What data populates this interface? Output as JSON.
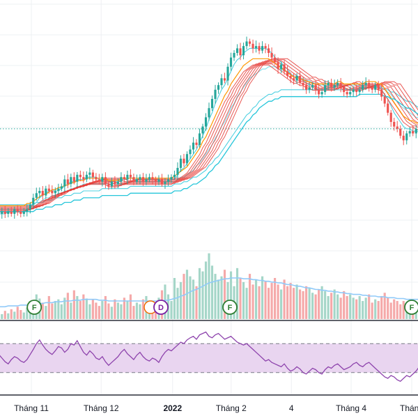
{
  "chart_data": {
    "type": "candlestick",
    "colors": {
      "up": "#26a69a",
      "down": "#ef5350",
      "volume_up": "#a5d6c8",
      "volume_down": "#f5a9a9",
      "volume_ma": "#90caf9",
      "rsi_line": "#8e44ad",
      "rsi_band": "#e9d5f0",
      "ribbon_short": "#4dd0e1",
      "ribbon_long": "#e53935",
      "ribbon_mid": "#ff9800",
      "ema_blue": "#3f51b5",
      "grid": "#eef0f3",
      "marker_f": "#2e7d32",
      "marker_d": "#7b1fa2",
      "marker_orange": "#ef6c00"
    },
    "x_axis": {
      "ticks": [
        {
          "label": "Tháng 11",
          "pos": 0.075
        },
        {
          "label": "Tháng 12",
          "pos": 0.242
        },
        {
          "label": "2022",
          "pos": 0.413
        },
        {
          "label": "Tháng 2",
          "pos": 0.553
        },
        {
          "label": "4",
          "pos": 0.697
        },
        {
          "label": "Tháng 4",
          "pos": 0.84
        },
        {
          "label": "Thán",
          "pos": 0.985
        }
      ]
    },
    "price": {
      "min": 0,
      "max": 100,
      "reference_line": 57,
      "close": [
        20,
        21,
        20,
        21,
        20,
        22,
        21,
        20,
        21,
        22,
        24,
        27,
        29,
        30,
        28,
        31,
        30,
        29,
        30,
        31,
        32,
        35,
        33,
        36,
        34,
        37,
        36,
        35,
        37,
        38,
        36,
        35,
        34,
        36,
        33,
        32,
        34,
        33,
        34,
        36,
        35,
        37,
        36,
        34,
        35,
        36,
        34,
        35,
        36,
        35,
        34,
        35,
        33,
        34,
        35,
        36,
        37,
        40,
        44,
        42,
        46,
        48,
        51,
        50,
        55,
        58,
        62,
        66,
        70,
        74,
        76,
        79,
        78,
        84,
        88,
        90,
        92,
        89,
        93,
        95,
        94,
        92,
        93,
        91,
        93,
        92,
        90,
        88,
        86,
        83,
        85,
        82,
        80,
        79,
        78,
        80,
        77,
        76,
        74,
        75,
        76,
        74,
        72,
        73,
        76,
        77,
        75,
        76,
        77,
        75,
        73,
        72,
        73,
        74,
        73,
        74,
        76,
        77,
        75,
        74,
        76,
        74,
        71,
        68,
        64,
        60,
        58,
        57,
        54,
        52,
        55,
        56,
        55,
        57,
        56
      ],
      "open": [
        20,
        20,
        21,
        20,
        21,
        20,
        22,
        21,
        20,
        21,
        22,
        24,
        27,
        29,
        30,
        28,
        31,
        30,
        29,
        30,
        31,
        32,
        35,
        33,
        36,
        34,
        37,
        36,
        35,
        37,
        38,
        36,
        35,
        34,
        36,
        33,
        32,
        34,
        33,
        34,
        36,
        35,
        37,
        36,
        34,
        35,
        36,
        34,
        35,
        36,
        35,
        34,
        35,
        33,
        34,
        35,
        36,
        37,
        40,
        44,
        42,
        46,
        48,
        51,
        50,
        55,
        58,
        62,
        66,
        70,
        74,
        76,
        79,
        78,
        84,
        88,
        90,
        92,
        89,
        93,
        95,
        94,
        92,
        93,
        91,
        93,
        92,
        90,
        88,
        86,
        83,
        85,
        82,
        80,
        79,
        78,
        80,
        77,
        76,
        74,
        75,
        76,
        74,
        72,
        73,
        76,
        77,
        75,
        76,
        77,
        75,
        73,
        72,
        73,
        74,
        73,
        74,
        76,
        77,
        75,
        74,
        76,
        74,
        71,
        68,
        64,
        60,
        58,
        57,
        54,
        52,
        55,
        56,
        55,
        57
      ],
      "ribbon": [
        [
          20,
          20,
          20,
          21,
          21,
          21,
          21,
          21,
          21,
          22,
          23,
          24,
          25,
          27,
          28,
          29,
          30,
          30,
          30,
          30,
          31,
          32,
          33,
          34,
          34,
          35,
          35,
          35,
          36,
          36,
          36,
          36,
          35,
          35,
          35,
          34,
          34,
          34,
          34,
          35,
          35,
          35,
          36,
          35,
          35,
          35,
          35,
          35,
          35,
          35,
          35,
          35,
          34,
          34,
          34,
          35,
          35,
          37,
          39,
          40,
          42,
          44,
          46,
          48,
          51,
          54,
          57,
          61,
          64,
          68,
          71,
          74,
          76,
          79,
          82,
          85,
          87,
          88,
          90,
          91,
          92,
          92,
          92,
          92,
          92,
          92,
          91,
          90,
          88,
          87,
          86,
          84,
          83,
          81,
          80,
          80,
          79,
          78,
          77,
          76,
          76,
          75,
          74,
          74,
          74,
          75,
          75,
          75,
          76,
          76,
          75,
          74,
          74,
          74,
          74,
          74,
          75,
          75,
          75,
          75,
          75,
          75,
          74,
          72,
          70,
          67,
          64,
          62,
          60,
          58,
          57,
          57,
          56,
          56,
          56
        ],
        [
          22,
          22,
          22,
          22,
          22,
          22,
          22,
          22,
          22,
          22,
          23,
          23,
          24,
          25,
          26,
          27,
          27,
          28,
          28,
          29,
          29,
          30,
          30,
          31,
          31,
          32,
          32,
          33,
          33,
          33,
          33,
          33,
          33,
          33,
          33,
          33,
          33,
          33,
          33,
          33,
          33,
          34,
          34,
          34,
          34,
          34,
          34,
          34,
          34,
          34,
          34,
          34,
          34,
          34,
          34,
          34,
          34,
          35,
          36,
          36,
          37,
          38,
          39,
          41,
          42,
          44,
          46,
          48,
          50,
          53,
          55,
          58,
          60,
          63,
          66,
          68,
          71,
          73,
          75,
          77,
          79,
          80,
          81,
          82,
          83,
          83,
          84,
          84,
          84,
          83,
          83,
          82,
          82,
          81,
          80,
          80,
          79,
          79,
          78,
          78,
          77,
          77,
          76,
          76,
          76,
          76,
          76,
          76,
          76,
          76,
          76,
          76,
          76,
          76,
          76,
          76,
          76,
          76,
          76,
          76,
          76,
          76,
          75,
          74,
          73,
          72,
          70,
          69,
          67,
          66,
          65,
          64,
          63,
          62,
          62
        ],
        [
          24,
          24,
          24,
          24,
          24,
          24,
          24,
          24,
          24,
          24,
          24,
          24,
          25,
          25,
          25,
          26,
          26,
          26,
          27,
          27,
          27,
          28,
          28,
          28,
          29,
          29,
          29,
          30,
          30,
          30,
          30,
          30,
          30,
          31,
          31,
          31,
          31,
          31,
          31,
          31,
          31,
          31,
          32,
          32,
          32,
          32,
          32,
          32,
          32,
          32,
          32,
          32,
          32,
          32,
          32,
          32,
          33,
          33,
          33,
          34,
          34,
          35,
          36,
          36,
          37,
          38,
          39,
          41,
          42,
          44,
          45,
          47,
          49,
          51,
          53,
          55,
          57,
          59,
          61,
          63,
          64,
          66,
          67,
          69,
          70,
          71,
          72,
          72,
          73,
          73,
          74,
          74,
          74,
          74,
          74,
          74,
          74,
          74,
          74,
          74,
          74,
          74,
          74,
          74,
          74,
          74,
          74,
          74,
          74,
          74,
          74,
          74,
          74,
          74,
          74,
          75,
          75,
          75,
          75,
          75,
          75,
          75,
          75,
          74,
          74,
          73,
          73,
          72,
          71,
          70,
          69,
          69,
          68,
          67,
          66
        ]
      ],
      "ribbon_mid": [
        22,
        22,
        22,
        22,
        22,
        22,
        22,
        22,
        22,
        23,
        23,
        24,
        25,
        26,
        27,
        27,
        28,
        29,
        29,
        30,
        30,
        31,
        31,
        32,
        32,
        33,
        33,
        33,
        34,
        34,
        34,
        34,
        34,
        34,
        34,
        33,
        33,
        33,
        33,
        34,
        34,
        34,
        34,
        34,
        34,
        34,
        34,
        34,
        34,
        34,
        34,
        34,
        34,
        34,
        34,
        34,
        35,
        36,
        37,
        38,
        39,
        41,
        43,
        45,
        47,
        50,
        52,
        55,
        58,
        61,
        64,
        67,
        70,
        72,
        75,
        77,
        79,
        81,
        83,
        84,
        85,
        86,
        86,
        86,
        86,
        86,
        86,
        85,
        84,
        83,
        82,
        81,
        80,
        79,
        78,
        78,
        77,
        77,
        76,
        76,
        75,
        75,
        75,
        75,
        75,
        75,
        75,
        75,
        76,
        76,
        75,
        75,
        75,
        75,
        75,
        75,
        75,
        76,
        76,
        76,
        76,
        75,
        75,
        73,
        71,
        69,
        67,
        65,
        63,
        61,
        60,
        59,
        59,
        58,
        58
      ]
    },
    "volume": {
      "max": 100,
      "values": [
        8,
        6,
        10,
        7,
        12,
        9,
        15,
        11,
        8,
        14,
        22,
        18,
        30,
        25,
        20,
        16,
        28,
        19,
        22,
        24,
        18,
        26,
        32,
        20,
        35,
        28,
        22,
        30,
        25,
        18,
        24,
        20,
        16,
        22,
        28,
        19,
        15,
        24,
        20,
        18,
        26,
        22,
        30,
        16,
        20,
        18,
        24,
        28,
        22,
        18,
        20,
        26,
        35,
        42,
        30,
        22,
        50,
        38,
        45,
        55,
        60,
        52,
        48,
        40,
        62,
        58,
        70,
        80,
        65,
        55,
        48,
        52,
        60,
        45,
        58,
        40,
        62,
        50,
        45,
        38,
        55,
        42,
        48,
        40,
        52,
        46,
        38,
        44,
        50,
        42,
        36,
        48,
        40,
        44,
        38,
        42,
        36,
        34,
        40,
        38,
        32,
        30,
        36,
        40,
        34,
        28,
        32,
        36,
        30,
        26,
        34,
        28,
        30,
        26,
        24,
        28,
        22,
        26,
        30,
        20,
        24,
        22,
        28,
        32,
        26,
        20,
        24,
        22,
        18,
        22,
        20,
        24,
        18,
        20,
        22
      ],
      "ma": [
        15,
        15,
        15,
        16,
        16,
        16,
        16,
        17,
        17,
        17,
        18,
        18,
        19,
        19,
        19,
        20,
        20,
        20,
        21,
        21,
        21,
        22,
        22,
        22,
        23,
        23,
        23,
        24,
        24,
        24,
        24,
        24,
        23,
        23,
        23,
        22,
        22,
        22,
        22,
        22,
        22,
        22,
        22,
        22,
        22,
        22,
        22,
        22,
        22,
        22,
        22,
        22,
        22,
        23,
        23,
        24,
        25,
        26,
        28,
        29,
        31,
        33,
        35,
        36,
        38,
        40,
        42,
        44,
        45,
        46,
        47,
        48,
        49,
        49,
        50,
        50,
        50,
        50,
        49,
        49,
        49,
        48,
        48,
        47,
        47,
        46,
        46,
        45,
        45,
        44,
        44,
        43,
        42,
        42,
        41,
        40,
        40,
        39,
        38,
        38,
        37,
        36,
        36,
        35,
        35,
        34,
        34,
        33,
        33,
        32,
        32,
        31,
        31,
        30,
        30,
        30,
        29,
        29,
        28,
        28,
        28,
        27,
        27,
        27,
        26,
        26,
        26,
        25,
        25,
        25,
        24,
        24,
        24,
        24,
        24
      ]
    },
    "rsi": {
      "min": 0,
      "max": 100,
      "upper": 70,
      "lower": 30,
      "values": [
        55,
        50,
        45,
        42,
        48,
        52,
        50,
        46,
        44,
        48,
        55,
        62,
        70,
        75,
        68,
        62,
        58,
        55,
        60,
        66,
        64,
        58,
        62,
        70,
        68,
        74,
        66,
        58,
        54,
        60,
        56,
        50,
        48,
        52,
        45,
        40,
        44,
        48,
        52,
        58,
        62,
        56,
        52,
        48,
        54,
        58,
        52,
        48,
        46,
        50,
        48,
        44,
        52,
        58,
        62,
        60,
        64,
        68,
        72,
        70,
        75,
        78,
        80,
        76,
        82,
        84,
        86,
        80,
        78,
        82,
        84,
        80,
        76,
        78,
        80,
        76,
        72,
        70,
        68,
        70,
        66,
        62,
        58,
        54,
        50,
        46,
        48,
        44,
        42,
        40,
        38,
        42,
        36,
        32,
        34,
        38,
        35,
        30,
        28,
        32,
        36,
        34,
        30,
        28,
        34,
        38,
        36,
        40,
        42,
        38,
        34,
        36,
        38,
        42,
        44,
        40,
        38,
        42,
        44,
        40,
        36,
        32,
        28,
        24,
        22,
        26,
        24,
        20,
        18,
        22,
        26,
        24,
        28,
        32,
        38
      ]
    },
    "markers": [
      {
        "letter": "F",
        "pos": 0.082,
        "kind": "f"
      },
      {
        "letter": "D",
        "pos": 0.385,
        "kind": "d"
      },
      {
        "letter": "F",
        "pos": 0.55,
        "kind": "f"
      },
      {
        "letter": "F",
        "pos": 0.985,
        "kind": "f"
      }
    ],
    "orange_marker_pos": 0.36
  }
}
